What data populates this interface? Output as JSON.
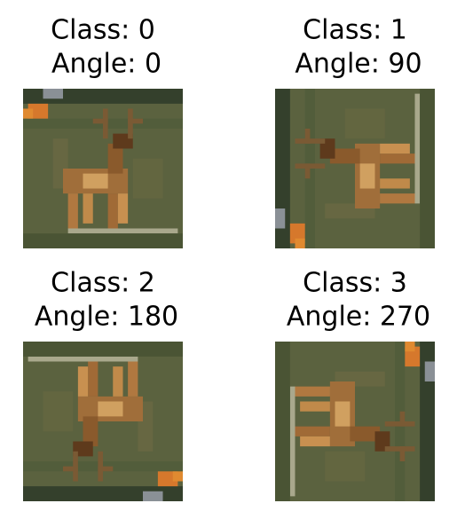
{
  "panels": [
    {
      "class_label": "Class: 0",
      "angle_label": "Angle: 0"
    },
    {
      "class_label": "Class: 1",
      "angle_label": "Angle: 90"
    },
    {
      "class_label": "Class: 2",
      "angle_label": "Angle: 180"
    },
    {
      "class_label": "Class: 3",
      "angle_label": "Angle: 270"
    }
  ]
}
